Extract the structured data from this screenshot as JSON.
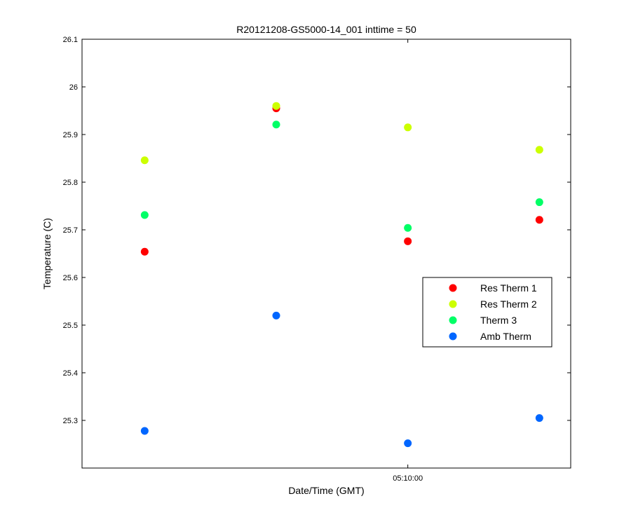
{
  "chart_data": {
    "type": "scatter",
    "title": "R20121208-GS5000-14_001 inttime = 50",
    "xlabel": "Date/Time (GMT)",
    "ylabel": "Temperature (C)",
    "x": [
      "05:06:30",
      "05:08:15",
      "05:10:00",
      "05:11:45"
    ],
    "xlim": [
      "05:05:40",
      "05:12:10"
    ],
    "x_ticks": [
      {
        "value": "05:10:00",
        "label": "05:10:00"
      }
    ],
    "ylim": [
      25.2,
      26.1
    ],
    "y_ticks": [
      {
        "value": 25.3,
        "label": "25.3"
      },
      {
        "value": 25.4,
        "label": "25.4"
      },
      {
        "value": 25.5,
        "label": "25.5"
      },
      {
        "value": 25.6,
        "label": "25.6"
      },
      {
        "value": 25.7,
        "label": "25.7"
      },
      {
        "value": 25.8,
        "label": "25.8"
      },
      {
        "value": 25.9,
        "label": "25.9"
      },
      {
        "value": 26.0,
        "label": "26"
      },
      {
        "value": 26.1,
        "label": "26.1"
      }
    ],
    "grid": false,
    "legend_position": "right",
    "series": [
      {
        "name": "Res Therm 1",
        "color": "#ff0000",
        "values": [
          25.654,
          25.955,
          25.676,
          25.721
        ]
      },
      {
        "name": "Res Therm 2",
        "color": "#ccff00",
        "values": [
          25.846,
          25.96,
          25.915,
          25.868
        ]
      },
      {
        "name": "Therm 3",
        "color": "#00ff66",
        "values": [
          25.731,
          25.921,
          25.704,
          25.758
        ]
      },
      {
        "name": "Amb Therm",
        "color": "#0066ff",
        "values": [
          25.278,
          25.52,
          25.252,
          25.305
        ]
      }
    ]
  }
}
